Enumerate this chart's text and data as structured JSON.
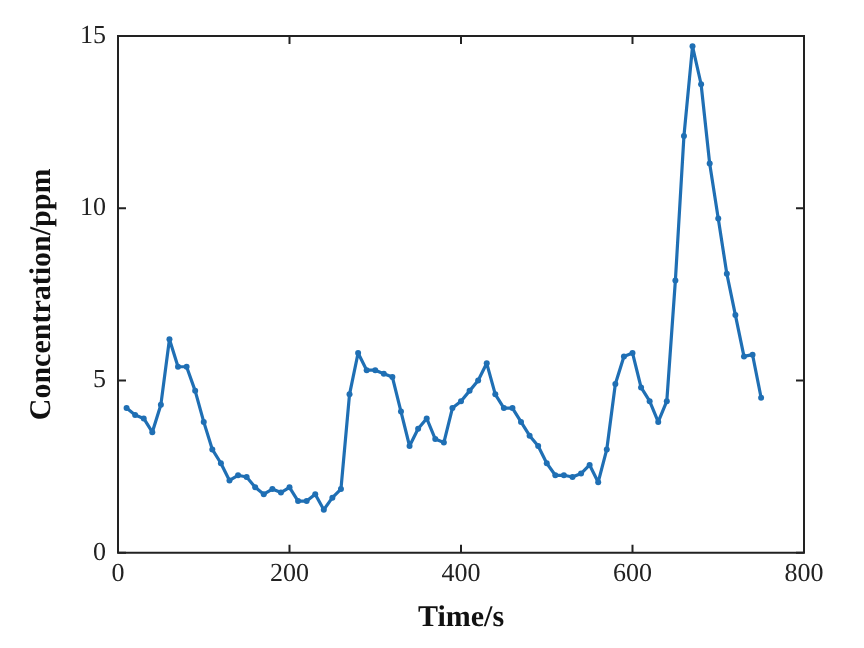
{
  "chart_data": {
    "type": "line",
    "xlabel": "Time/s",
    "ylabel": "Concentration/ppm",
    "x": [
      10,
      20,
      30,
      40,
      50,
      60,
      70,
      80,
      90,
      100,
      110,
      120,
      130,
      140,
      150,
      160,
      170,
      180,
      190,
      200,
      210,
      220,
      230,
      240,
      250,
      260,
      270,
      280,
      290,
      300,
      310,
      320,
      330,
      340,
      350,
      360,
      370,
      380,
      390,
      400,
      410,
      420,
      430,
      440,
      450,
      460,
      470,
      480,
      490,
      500,
      510,
      520,
      530,
      540,
      550,
      560,
      570,
      580,
      590,
      600,
      610,
      620,
      630,
      640,
      650,
      660,
      670,
      680,
      690,
      700,
      710,
      720,
      730,
      740,
      750
    ],
    "series": [
      {
        "color": "#1f6fb4",
        "values": [
          4.2,
          4.0,
          3.9,
          3.5,
          4.3,
          6.2,
          5.4,
          5.4,
          4.7,
          3.8,
          3.0,
          2.6,
          2.1,
          2.25,
          2.2,
          1.9,
          1.7,
          1.85,
          1.75,
          1.9,
          1.5,
          1.5,
          1.7,
          1.25,
          1.6,
          1.85,
          4.6,
          5.8,
          5.3,
          5.3,
          5.2,
          5.1,
          4.1,
          3.1,
          3.6,
          3.9,
          3.3,
          3.2,
          4.2,
          4.4,
          4.7,
          5.0,
          5.5,
          4.6,
          4.2,
          4.2,
          3.8,
          3.4,
          3.1,
          2.6,
          2.25,
          2.25,
          2.2,
          2.3,
          2.55,
          2.05,
          3.0,
          4.9,
          5.7,
          5.8,
          4.8,
          4.4,
          3.8,
          4.4,
          7.9,
          12.1,
          14.7,
          13.6,
          11.3,
          9.7,
          8.1,
          6.9,
          5.7,
          5.75,
          4.5
        ]
      }
    ],
    "xlim": [
      0,
      800
    ],
    "xticks": [
      0,
      200,
      400,
      600,
      800
    ],
    "ylim": [
      0,
      15
    ],
    "yticks": [
      0,
      5,
      10,
      15
    ],
    "grid": false,
    "legend": false,
    "marker": "circle",
    "line_style": "solid"
  }
}
